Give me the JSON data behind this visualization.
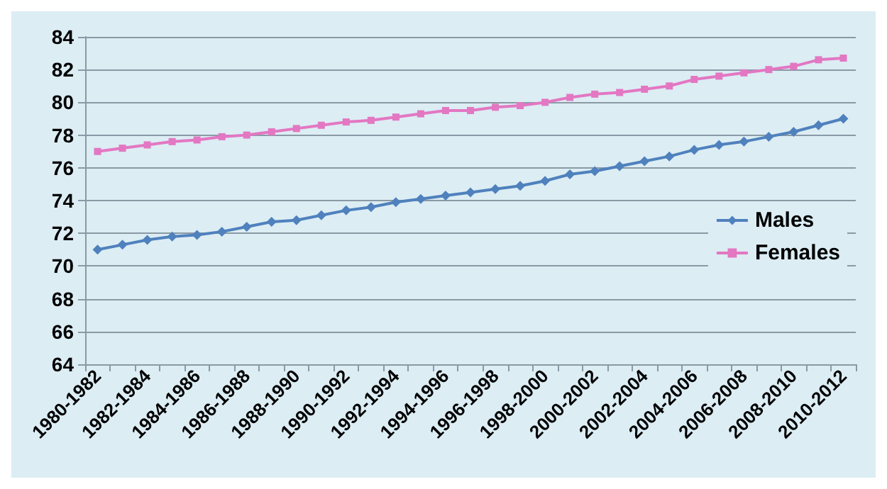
{
  "chart_data": {
    "type": "line",
    "categories": [
      "1980-1982",
      null,
      "1982-1984",
      null,
      "1984-1986",
      null,
      "1986-1988",
      null,
      "1988-1990",
      null,
      "1990-1992",
      null,
      "1992-1994",
      null,
      "1994-1996",
      null,
      "1996-1998",
      null,
      "1998-2000",
      null,
      "2000-2002",
      null,
      "2002-2004",
      null,
      "2004-2006",
      null,
      "2006-2008",
      null,
      "2008-2010",
      null,
      "2010-2012"
    ],
    "series": [
      {
        "name": "Males",
        "color": "#4f81bd",
        "marker": "diamond",
        "values": [
          71.0,
          71.3,
          71.6,
          71.8,
          71.9,
          72.1,
          72.4,
          72.7,
          72.8,
          73.1,
          73.4,
          73.6,
          73.9,
          74.1,
          74.3,
          74.5,
          74.7,
          74.9,
          75.2,
          75.6,
          75.8,
          76.1,
          76.4,
          76.7,
          77.1,
          77.4,
          77.6,
          77.9,
          78.2,
          78.6,
          79.0
        ]
      },
      {
        "name": "Females",
        "color": "#e377c2",
        "marker": "square",
        "values": [
          77.0,
          77.2,
          77.4,
          77.6,
          77.7,
          77.9,
          78.0,
          78.2,
          78.4,
          78.6,
          78.8,
          78.9,
          79.1,
          79.3,
          79.5,
          79.5,
          79.7,
          79.8,
          80.0,
          80.3,
          80.5,
          80.6,
          80.8,
          81.0,
          81.4,
          81.6,
          81.8,
          82.0,
          82.2,
          82.6,
          82.7
        ]
      }
    ],
    "ylim": [
      64,
      84
    ],
    "yticks": [
      64,
      66,
      68,
      70,
      72,
      74,
      76,
      78,
      80,
      82,
      84
    ],
    "grid": "y",
    "legend": "right"
  }
}
